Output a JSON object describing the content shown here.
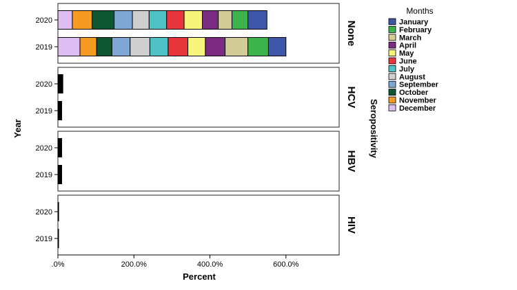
{
  "chart_data": {
    "type": "bar",
    "orientation": "horizontal",
    "stacked": true,
    "xlabel": "Percent",
    "ylabel": "Year",
    "facet_label": "Seropositivity",
    "xlim": [
      0,
      740
    ],
    "x_ticks": [
      ".0%",
      "200.0%",
      "400.0%",
      "600.0%"
    ],
    "x_tick_values": [
      0,
      200,
      400,
      600
    ],
    "legend": {
      "title": "Months",
      "placement": "right",
      "entries": [
        "January",
        "February",
        "March",
        "April",
        "May",
        "June",
        "July",
        "August",
        "September",
        "October",
        "November",
        "December"
      ]
    },
    "colors": {
      "January": "#3f57a8",
      "February": "#3cb44b",
      "March": "#d4cc96",
      "April": "#7b2c82",
      "May": "#f7f57c",
      "June": "#e8363d",
      "July": "#4ec2c6",
      "August": "#cfcfcf",
      "September": "#7fa7d6",
      "October": "#0d5631",
      "November": "#f59a23",
      "December": "#ddbdf2"
    },
    "stack_order": [
      "December",
      "November",
      "October",
      "September",
      "August",
      "July",
      "June",
      "May",
      "April",
      "March",
      "February",
      "January"
    ],
    "panels": [
      {
        "name": "None",
        "rows": [
          {
            "year": "2020",
            "values": {
              "December": 38,
              "November": 52,
              "October": 58,
              "September": 48,
              "August": 44,
              "July": 46,
              "June": 46,
              "May": 48,
              "April": 42,
              "March": 36,
              "February": 42,
              "January": 50
            }
          },
          {
            "year": "2019",
            "values": {
              "December": 58,
              "November": 44,
              "October": 40,
              "September": 48,
              "August": 52,
              "July": 48,
              "June": 52,
              "May": 46,
              "April": 52,
              "March": 60,
              "February": 54,
              "January": 46
            }
          }
        ]
      },
      {
        "name": "HCV",
        "rows": [
          {
            "year": "2020",
            "values": {
              "October": 13
            }
          },
          {
            "year": "2019",
            "values": {
              "October": 10
            }
          }
        ]
      },
      {
        "name": "HBV",
        "rows": [
          {
            "year": "2020",
            "values": {
              "October": 10
            }
          },
          {
            "year": "2019",
            "values": {
              "October": 10
            }
          }
        ]
      },
      {
        "name": "HIV",
        "rows": [
          {
            "year": "2020",
            "values": {
              "October": 2
            }
          },
          {
            "year": "2019",
            "values": {
              "October": 1
            }
          }
        ]
      }
    ]
  }
}
